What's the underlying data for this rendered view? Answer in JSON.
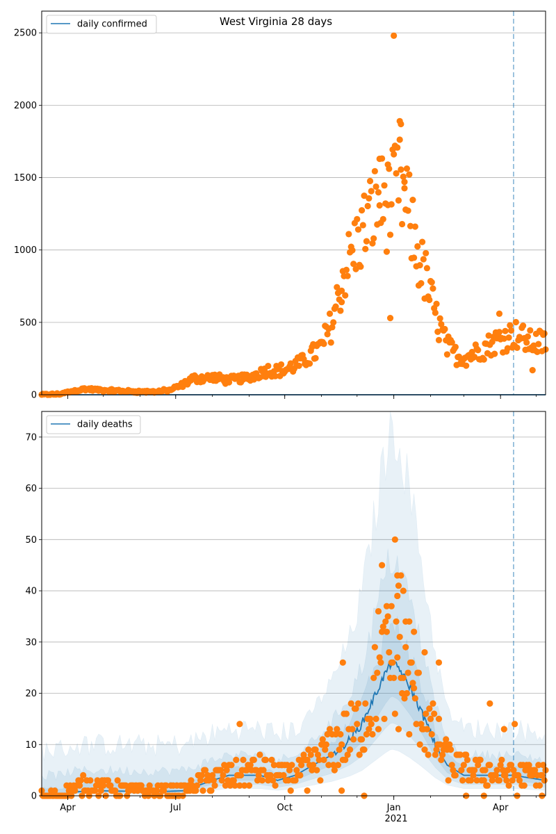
{
  "figure": {
    "title": "West Virginia 28 days"
  },
  "colors": {
    "model_line": "#1f77b4",
    "observed_points": "#ff7f0e",
    "band": "#1f77b4",
    "grid": "#b0b0b0",
    "vline": "#1f77b4"
  },
  "x_axis": {
    "tick_labels": [
      "Apr",
      "Jul",
      "Oct",
      "Jan",
      "Apr"
    ],
    "year_label": "2021"
  },
  "chart_data": [
    {
      "type": "scatter",
      "panel": "top",
      "legend": {
        "label": "daily confirmed",
        "placement": "top-left"
      },
      "ylim": [
        0,
        2650
      ],
      "yticks": [
        0,
        500,
        1000,
        1500,
        2000,
        2500
      ],
      "xlim": [
        "2020-03-10",
        "2021-05-09"
      ],
      "xticks": [
        "2020-04-01",
        "2020-07-01",
        "2020-10-01",
        "2021-01-01",
        "2021-04-01"
      ],
      "forecast_start": "2021-04-12",
      "grid": "y",
      "model_line": {
        "start": "2020-03-10",
        "end": "2021-05-09",
        "value": 0
      },
      "observed_anchors": [
        [
          "2020-03-10",
          0
        ],
        [
          "2020-03-25",
          5
        ],
        [
          "2020-04-05",
          25
        ],
        [
          "2020-04-15",
          40
        ],
        [
          "2020-05-01",
          30
        ],
        [
          "2020-05-20",
          25
        ],
        [
          "2020-06-10",
          20
        ],
        [
          "2020-06-25",
          30
        ],
        [
          "2020-07-05",
          60
        ],
        [
          "2020-07-15",
          110
        ],
        [
          "2020-08-01",
          120
        ],
        [
          "2020-08-15",
          100
        ],
        [
          "2020-09-01",
          120
        ],
        [
          "2020-09-15",
          170
        ],
        [
          "2020-10-01",
          170
        ],
        [
          "2020-10-15",
          220
        ],
        [
          "2020-11-01",
          330
        ],
        [
          "2020-11-10",
          500
        ],
        [
          "2020-11-20",
          850
        ],
        [
          "2020-12-01",
          1050
        ],
        [
          "2020-12-10",
          1200
        ],
        [
          "2020-12-20",
          1350
        ],
        [
          "2020-12-28",
          1300
        ],
        [
          "2021-01-05",
          1450
        ],
        [
          "2021-01-12",
          1300
        ],
        [
          "2021-01-20",
          1000
        ],
        [
          "2021-01-28",
          800
        ],
        [
          "2021-02-05",
          550
        ],
        [
          "2021-02-15",
          330
        ],
        [
          "2021-02-25",
          260
        ],
        [
          "2021-03-05",
          270
        ],
        [
          "2021-03-15",
          310
        ],
        [
          "2021-03-25",
          360
        ],
        [
          "2021-04-05",
          400
        ],
        [
          "2021-04-15",
          420
        ],
        [
          "2021-04-25",
          360
        ],
        [
          "2021-05-09",
          360
        ]
      ],
      "outliers": [
        [
          "2021-01-01",
          2480
        ],
        [
          "2021-01-06",
          1890
        ],
        [
          "2021-01-07",
          1870
        ],
        [
          "2021-01-02",
          1720
        ],
        [
          "2020-12-20",
          1630
        ],
        [
          "2020-12-27",
          1590
        ],
        [
          "2021-01-10",
          1470
        ],
        [
          "2021-03-31",
          560
        ],
        [
          "2020-11-18",
          640
        ],
        [
          "2020-12-29",
          530
        ],
        [
          "2021-04-28",
          170
        ]
      ]
    },
    {
      "type": "scatter",
      "panel": "bottom",
      "legend": {
        "label": "daily deaths",
        "placement": "top-left"
      },
      "ylim": [
        0,
        75
      ],
      "yticks": [
        0,
        10,
        20,
        30,
        40,
        50,
        60,
        70
      ],
      "xlim": [
        "2020-03-10",
        "2021-05-09"
      ],
      "xticks": [
        "2020-04-01",
        "2020-07-01",
        "2020-10-01",
        "2021-01-01",
        "2021-04-01"
      ],
      "forecast_start": "2021-04-12",
      "grid": "y",
      "model_anchors": [
        [
          "2020-03-10",
          0
        ],
        [
          "2020-03-26",
          0
        ],
        [
          "2020-04-01",
          0.6
        ],
        [
          "2020-04-20",
          1
        ],
        [
          "2020-06-15",
          0.8
        ],
        [
          "2020-07-10",
          1
        ],
        [
          "2020-07-20",
          2
        ],
        [
          "2020-08-01",
          3
        ],
        [
          "2020-08-15",
          4
        ],
        [
          "2020-09-10",
          4
        ],
        [
          "2020-09-25",
          3
        ],
        [
          "2020-10-10",
          4
        ],
        [
          "2020-10-25",
          6
        ],
        [
          "2020-11-10",
          8
        ],
        [
          "2020-11-25",
          11
        ],
        [
          "2020-12-05",
          14
        ],
        [
          "2020-12-15",
          19
        ],
        [
          "2020-12-25",
          24
        ],
        [
          "2020-12-30",
          26
        ],
        [
          "2021-01-05",
          25
        ],
        [
          "2021-01-15",
          21
        ],
        [
          "2021-01-25",
          16
        ],
        [
          "2021-02-05",
          10
        ],
        [
          "2021-02-15",
          6
        ],
        [
          "2021-03-01",
          4
        ],
        [
          "2021-04-12",
          4
        ],
        [
          "2021-04-25",
          3.5
        ],
        [
          "2021-05-09",
          3
        ]
      ],
      "band_scale": [
        {
          "low": 0.35,
          "high": 2.8,
          "floor": 9
        },
        {
          "low": 0.55,
          "high": 1.8,
          "floor": 4
        },
        {
          "low": 0.75,
          "high": 1.3,
          "floor": 1.5
        }
      ],
      "observed_anchors": [
        [
          "2020-03-10",
          0
        ],
        [
          "2020-03-28",
          0
        ],
        [
          "2020-04-01",
          1
        ],
        [
          "2020-04-15",
          2
        ],
        [
          "2020-05-10",
          1.5
        ],
        [
          "2020-06-10",
          0.8
        ],
        [
          "2020-07-10",
          1
        ],
        [
          "2020-07-25",
          3
        ],
        [
          "2020-08-15",
          4
        ],
        [
          "2020-09-10",
          5
        ],
        [
          "2020-09-25",
          4
        ],
        [
          "2020-10-10",
          4
        ],
        [
          "2020-10-25",
          6
        ],
        [
          "2020-11-10",
          9
        ],
        [
          "2020-11-25",
          12
        ],
        [
          "2020-12-05",
          14
        ],
        [
          "2020-12-15",
          20
        ],
        [
          "2020-12-25",
          25
        ],
        [
          "2021-01-05",
          24
        ],
        [
          "2021-01-15",
          20
        ],
        [
          "2021-01-25",
          16
        ],
        [
          "2021-02-05",
          11
        ],
        [
          "2021-02-15",
          7
        ],
        [
          "2021-03-01",
          5
        ],
        [
          "2021-04-12",
          4
        ],
        [
          "2021-05-09",
          4
        ]
      ],
      "outliers": [
        [
          "2021-01-02",
          50
        ],
        [
          "2020-12-22",
          45
        ],
        [
          "2021-01-04",
          43
        ],
        [
          "2021-01-07",
          43
        ],
        [
          "2021-01-05",
          41
        ],
        [
          "2021-01-09",
          40
        ],
        [
          "2021-01-04",
          39
        ],
        [
          "2020-12-26",
          37
        ],
        [
          "2020-12-30",
          37
        ],
        [
          "2020-12-19",
          36
        ],
        [
          "2021-01-11",
          34
        ],
        [
          "2021-01-14",
          34
        ],
        [
          "2021-01-18",
          32
        ],
        [
          "2021-01-27",
          28
        ],
        [
          "2020-11-19",
          26
        ],
        [
          "2021-02-08",
          26
        ],
        [
          "2021-03-23",
          18
        ],
        [
          "2020-08-24",
          14
        ],
        [
          "2021-04-13",
          14
        ],
        [
          "2021-04-04",
          13
        ],
        [
          "2020-11-03",
          10
        ],
        [
          "2020-12-07",
          0
        ],
        [
          "2021-03-03",
          0
        ],
        [
          "2021-03-18",
          0
        ],
        [
          "2021-04-15",
          0
        ],
        [
          "2021-05-06",
          0
        ],
        [
          "2020-10-20",
          1
        ],
        [
          "2020-11-18",
          1
        ]
      ]
    }
  ]
}
